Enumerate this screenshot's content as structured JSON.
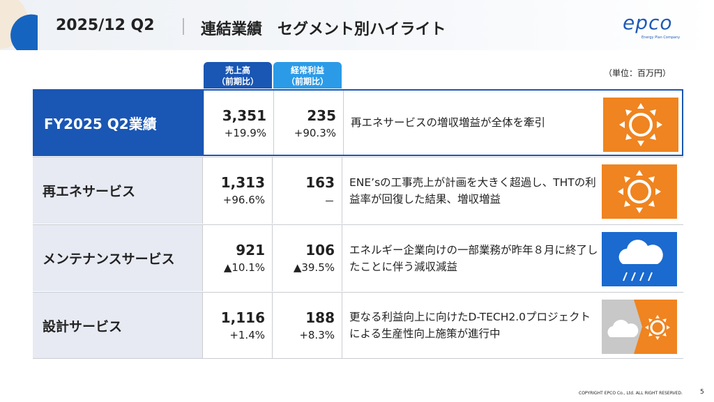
{
  "header": {
    "period": "2025/12 Q2",
    "title": "連結業績　セグメント別ハイライト",
    "logo": "epco",
    "logo_tagline": "Energy Plan Company"
  },
  "unit": "（単位：百万円）",
  "columns": [
    {
      "name": "売上高",
      "sub": "（前期比）"
    },
    {
      "name": "経常利益",
      "sub": "（前期比）"
    }
  ],
  "table": {
    "rows": [
      {
        "label": "FY2025 Q2業績",
        "sales": "3,351",
        "sales_change": "+19.9%",
        "profit": "235",
        "profit_change": "+90.3%",
        "comment": "再エネサービスの増収増益が全体を牽引"
      },
      {
        "label": "再エネサービス",
        "sales": "1,313",
        "sales_change": "+96.6%",
        "profit": "163",
        "profit_change": "－",
        "comment": "ENE’sの工事売上が計画を大きく超過し、THTの利益率が回復した結果、増収増益"
      },
      {
        "label": "メンテナンスサービス",
        "sales": "921",
        "sales_change": "▲10.1%",
        "profit": "106",
        "profit_change": "▲39.5%",
        "comment": "エネルギー企業向けの一部業務が昨年８月に終了したことに伴う減収減益"
      },
      {
        "label": "設計サービス",
        "sales": "1,116",
        "sales_change": "+1.4%",
        "profit": "188",
        "profit_change": "+8.3%",
        "comment": "更なる利益向上に向けたD-TECH2.0プロジェクトによる生産性向上施策が進行中"
      }
    ]
  },
  "footer": {
    "copyright": "COPYRIGHT EPCO Co., Ltd. ALL RIGHT RESERVED.",
    "page": "5"
  }
}
